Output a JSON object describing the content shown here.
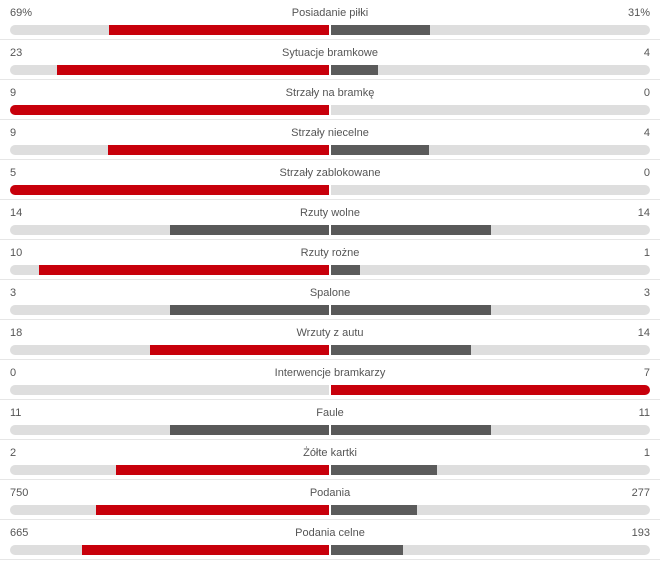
{
  "colors": {
    "leader": "#c8000b",
    "equal": "#595959",
    "trailing": "#5b5b5b",
    "track": "#dedede"
  },
  "stats": [
    {
      "label": "Posiadanie piłki",
      "home": "69%",
      "away": "31%",
      "home_value": 69,
      "away_value": 31
    },
    {
      "label": "Sytuacje bramkowe",
      "home": "23",
      "away": "4",
      "home_value": 23,
      "away_value": 4
    },
    {
      "label": "Strzały na bramkę",
      "home": "9",
      "away": "0",
      "home_value": 9,
      "away_value": 0
    },
    {
      "label": "Strzały niecelne",
      "home": "9",
      "away": "4",
      "home_value": 9,
      "away_value": 4
    },
    {
      "label": "Strzały zablokowane",
      "home": "5",
      "away": "0",
      "home_value": 5,
      "away_value": 0
    },
    {
      "label": "Rzuty wolne",
      "home": "14",
      "away": "14",
      "home_value": 14,
      "away_value": 14
    },
    {
      "label": "Rzuty rożne",
      "home": "10",
      "away": "1",
      "home_value": 10,
      "away_value": 1
    },
    {
      "label": "Spalone",
      "home": "3",
      "away": "3",
      "home_value": 3,
      "away_value": 3
    },
    {
      "label": "Wrzuty z autu",
      "home": "18",
      "away": "14",
      "home_value": 18,
      "away_value": 14
    },
    {
      "label": "Interwencje bramkarzy",
      "home": "0",
      "away": "7",
      "home_value": 0,
      "away_value": 7
    },
    {
      "label": "Faule",
      "home": "11",
      "away": "11",
      "home_value": 11,
      "away_value": 11
    },
    {
      "label": "Żółte kartki",
      "home": "2",
      "away": "1",
      "home_value": 2,
      "away_value": 1
    },
    {
      "label": "Podania",
      "home": "750",
      "away": "277",
      "home_value": 750,
      "away_value": 277
    },
    {
      "label": "Podania celne",
      "home": "665",
      "away": "193",
      "home_value": 665,
      "away_value": 193
    }
  ]
}
